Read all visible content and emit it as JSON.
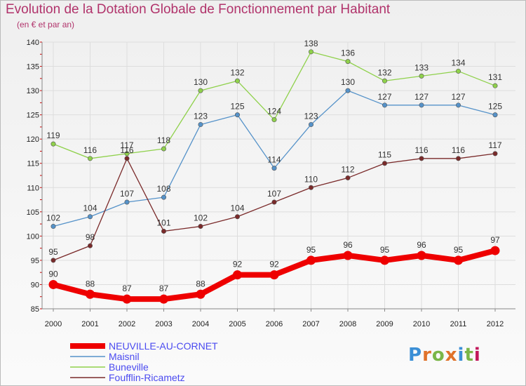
{
  "header": {
    "title": "Evolution de la Dotation Globale de Fonctionnement par Habitant",
    "subtitle": "(en € et par an)"
  },
  "logo": {
    "text": "Proxiti",
    "colors": [
      "#3b8fd6",
      "#e0722a",
      "#7ab648",
      "#e0722a",
      "#3b8fd6",
      "#7ab648",
      "#c2185b"
    ]
  },
  "chart_data": {
    "type": "line",
    "title": "Evolution de la Dotation Globale de Fonctionnement par Habitant",
    "subtitle": "(en € et par an)",
    "xlabel": "",
    "ylabel": "",
    "x": [
      "2000",
      "2001",
      "2002",
      "2003",
      "2004",
      "2005",
      "2006",
      "2007",
      "2008",
      "2009",
      "2010",
      "2011",
      "2012"
    ],
    "ylim": [
      85,
      140
    ],
    "yticks": [
      85,
      90,
      95,
      100,
      105,
      110,
      115,
      120,
      125,
      130,
      135,
      140
    ],
    "grid": true,
    "legend_position": "bottom-left",
    "series": [
      {
        "name": "NEUVILLE-AU-CORNET",
        "color": "#ee0000",
        "values": [
          90,
          88,
          87,
          87,
          88,
          92,
          92,
          95,
          96,
          95,
          96,
          95,
          97
        ]
      },
      {
        "name": "Maisnil",
        "color": "#5592c9",
        "values": [
          102,
          104,
          107,
          108,
          123,
          125,
          114,
          123,
          130,
          127,
          127,
          127,
          125
        ]
      },
      {
        "name": "Buneville",
        "color": "#8fd14b",
        "values": [
          119,
          116,
          117,
          118,
          130,
          132,
          124,
          138,
          136,
          132,
          133,
          134,
          131
        ]
      },
      {
        "name": "Foufflin-Ricametz",
        "color": "#7a2a2a",
        "values": [
          95,
          98,
          116,
          101,
          102,
          104,
          107,
          110,
          112,
          115,
          116,
          116,
          117
        ]
      }
    ]
  }
}
